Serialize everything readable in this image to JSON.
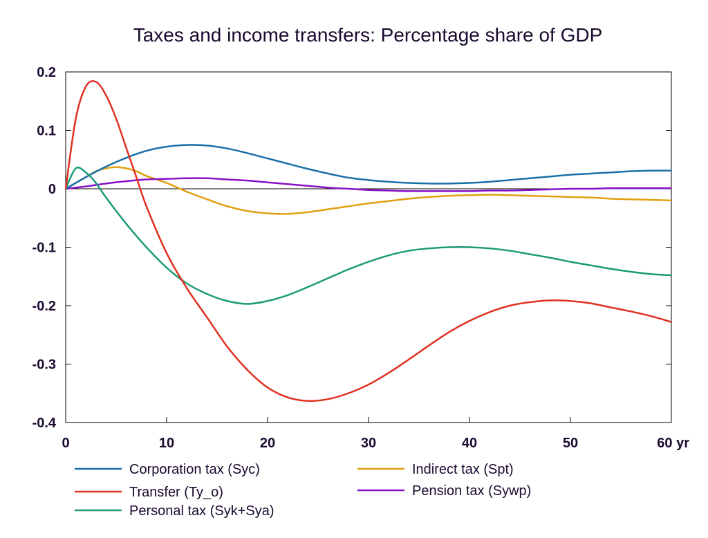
{
  "chart_data": {
    "type": "line",
    "title": "Taxes and income transfers: Percentage share of GDP",
    "xlabel": "",
    "ylabel": "",
    "xlim": [
      0,
      60
    ],
    "ylim": [
      -0.4,
      0.2
    ],
    "x_ticks": [
      0,
      10,
      20,
      30,
      40,
      50,
      60
    ],
    "x_tick_labels": [
      "0",
      "10",
      "20",
      "30",
      "40",
      "50",
      "60 yr"
    ],
    "y_ticks": [
      0.2,
      0.1,
      0,
      -0.1,
      -0.2,
      -0.3,
      -0.4
    ],
    "y_tick_labels": [
      "0.2",
      "0.1",
      "0",
      "-0.1",
      "-0.2",
      "-0.3",
      "-0.4"
    ],
    "grid": false,
    "legend_position": "bottom",
    "series": [
      {
        "name": "Corporation tax (Syc)",
        "color": "#1a6fa8",
        "points": [
          [
            0,
            0
          ],
          [
            2,
            0.02
          ],
          [
            4,
            0.038
          ],
          [
            6,
            0.053
          ],
          [
            8,
            0.065
          ],
          [
            10,
            0.072
          ],
          [
            12,
            0.075
          ],
          [
            14,
            0.074
          ],
          [
            16,
            0.069
          ],
          [
            18,
            0.061
          ],
          [
            20,
            0.052
          ],
          [
            22,
            0.043
          ],
          [
            24,
            0.034
          ],
          [
            26,
            0.026
          ],
          [
            28,
            0.019
          ],
          [
            30,
            0.015
          ],
          [
            32,
            0.012
          ],
          [
            34,
            0.01
          ],
          [
            36,
            0.009
          ],
          [
            38,
            0.009
          ],
          [
            40,
            0.01
          ],
          [
            42,
            0.012
          ],
          [
            44,
            0.015
          ],
          [
            46,
            0.018
          ],
          [
            48,
            0.021
          ],
          [
            50,
            0.024
          ],
          [
            52,
            0.026
          ],
          [
            54,
            0.028
          ],
          [
            56,
            0.03
          ],
          [
            58,
            0.031
          ],
          [
            60,
            0.031
          ]
        ]
      },
      {
        "name": "Transfer (Ty_o)",
        "color": "#e03020",
        "points": [
          [
            0,
            0
          ],
          [
            1,
            0.12
          ],
          [
            2,
            0.175
          ],
          [
            3,
            0.183
          ],
          [
            4,
            0.16
          ],
          [
            5,
            0.12
          ],
          [
            6,
            0.07
          ],
          [
            7,
            0.02
          ],
          [
            8,
            -0.03
          ],
          [
            10,
            -0.11
          ],
          [
            12,
            -0.17
          ],
          [
            14,
            -0.22
          ],
          [
            16,
            -0.27
          ],
          [
            18,
            -0.31
          ],
          [
            20,
            -0.34
          ],
          [
            22,
            -0.357
          ],
          [
            24,
            -0.363
          ],
          [
            26,
            -0.36
          ],
          [
            28,
            -0.35
          ],
          [
            30,
            -0.335
          ],
          [
            32,
            -0.315
          ],
          [
            34,
            -0.292
          ],
          [
            36,
            -0.268
          ],
          [
            38,
            -0.245
          ],
          [
            40,
            -0.226
          ],
          [
            42,
            -0.211
          ],
          [
            44,
            -0.2
          ],
          [
            46,
            -0.194
          ],
          [
            48,
            -0.191
          ],
          [
            50,
            -0.192
          ],
          [
            52,
            -0.196
          ],
          [
            54,
            -0.203
          ],
          [
            56,
            -0.21
          ],
          [
            58,
            -0.218
          ],
          [
            60,
            -0.228
          ]
        ]
      },
      {
        "name": "Personal tax (Syk+Sya)",
        "color": "#1a9a78",
        "points": [
          [
            0,
            0
          ],
          [
            1,
            0.035
          ],
          [
            2,
            0.028
          ],
          [
            3,
            0.01
          ],
          [
            4,
            -0.015
          ],
          [
            6,
            -0.06
          ],
          [
            8,
            -0.1
          ],
          [
            10,
            -0.135
          ],
          [
            12,
            -0.162
          ],
          [
            14,
            -0.18
          ],
          [
            16,
            -0.192
          ],
          [
            18,
            -0.197
          ],
          [
            20,
            -0.192
          ],
          [
            22,
            -0.182
          ],
          [
            24,
            -0.168
          ],
          [
            26,
            -0.153
          ],
          [
            28,
            -0.138
          ],
          [
            30,
            -0.125
          ],
          [
            32,
            -0.114
          ],
          [
            34,
            -0.106
          ],
          [
            36,
            -0.102
          ],
          [
            38,
            -0.1
          ],
          [
            40,
            -0.1
          ],
          [
            42,
            -0.102
          ],
          [
            44,
            -0.106
          ],
          [
            46,
            -0.112
          ],
          [
            48,
            -0.118
          ],
          [
            50,
            -0.125
          ],
          [
            52,
            -0.131
          ],
          [
            54,
            -0.137
          ],
          [
            56,
            -0.142
          ],
          [
            58,
            -0.146
          ],
          [
            60,
            -0.148
          ]
        ]
      },
      {
        "name": "Indirect tax (Spt)",
        "color": "#e0a010",
        "points": [
          [
            0,
            0
          ],
          [
            1,
            0.01
          ],
          [
            2,
            0.02
          ],
          [
            3,
            0.03
          ],
          [
            4,
            0.035
          ],
          [
            5,
            0.037
          ],
          [
            6,
            0.035
          ],
          [
            7,
            0.03
          ],
          [
            8,
            0.022
          ],
          [
            10,
            0.01
          ],
          [
            12,
            -0.005
          ],
          [
            14,
            -0.018
          ],
          [
            16,
            -0.03
          ],
          [
            18,
            -0.038
          ],
          [
            20,
            -0.042
          ],
          [
            22,
            -0.043
          ],
          [
            24,
            -0.04
          ],
          [
            26,
            -0.035
          ],
          [
            28,
            -0.03
          ],
          [
            30,
            -0.025
          ],
          [
            32,
            -0.021
          ],
          [
            34,
            -0.017
          ],
          [
            36,
            -0.014
          ],
          [
            38,
            -0.012
          ],
          [
            40,
            -0.011
          ],
          [
            42,
            -0.01
          ],
          [
            44,
            -0.011
          ],
          [
            46,
            -0.012
          ],
          [
            48,
            -0.013
          ],
          [
            50,
            -0.014
          ],
          [
            52,
            -0.015
          ],
          [
            54,
            -0.017
          ],
          [
            56,
            -0.018
          ],
          [
            58,
            -0.019
          ],
          [
            60,
            -0.02
          ]
        ]
      },
      {
        "name": "Pension tax (Sywp)",
        "color": "#8a10c8",
        "points": [
          [
            0,
            0
          ],
          [
            2,
            0.004
          ],
          [
            4,
            0.009
          ],
          [
            6,
            0.013
          ],
          [
            8,
            0.016
          ],
          [
            10,
            0.017
          ],
          [
            12,
            0.018
          ],
          [
            14,
            0.018
          ],
          [
            16,
            0.016
          ],
          [
            18,
            0.014
          ],
          [
            20,
            0.011
          ],
          [
            22,
            0.008
          ],
          [
            24,
            0.005
          ],
          [
            26,
            0.002
          ],
          [
            28,
            0
          ],
          [
            30,
            -0.002
          ],
          [
            32,
            -0.003
          ],
          [
            34,
            -0.004
          ],
          [
            36,
            -0.004
          ],
          [
            38,
            -0.004
          ],
          [
            40,
            -0.004
          ],
          [
            42,
            -0.003
          ],
          [
            44,
            -0.003
          ],
          [
            46,
            -0.002
          ],
          [
            48,
            -0.001
          ],
          [
            50,
            0
          ],
          [
            52,
            0
          ],
          [
            54,
            0.001
          ],
          [
            56,
            0.001
          ],
          [
            58,
            0.001
          ],
          [
            60,
            0.001
          ]
        ]
      }
    ]
  }
}
